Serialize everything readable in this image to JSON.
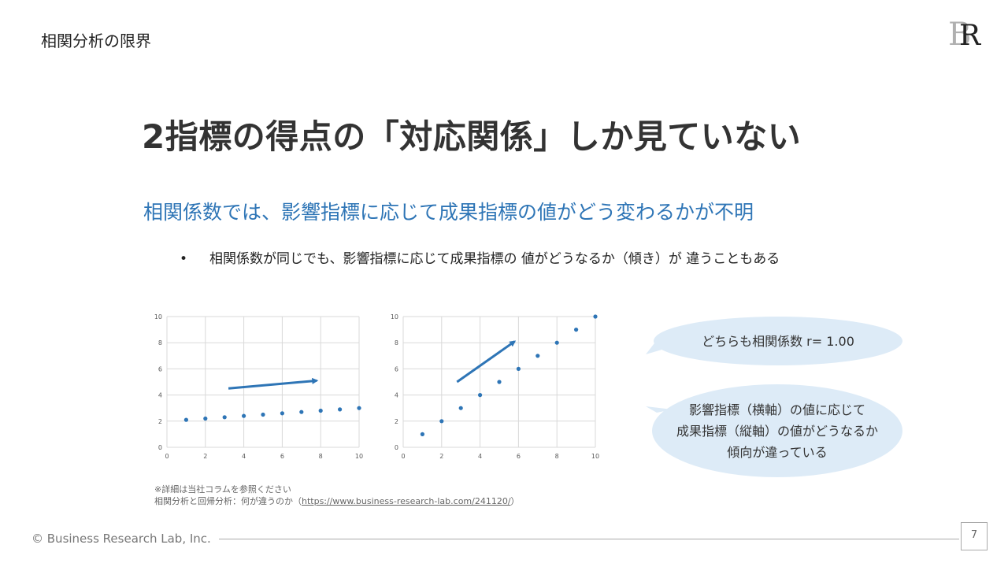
{
  "header": {
    "section_title": "相関分析の限界",
    "logo_letters": "BR"
  },
  "main": {
    "headline": "2指標の得点の「対応関係」しか見ていない",
    "subhead": "相関係数では、影響指標に応じて成果指標の値がどう変わるかが不明",
    "bullet_marker": "•",
    "bullet": "相関係数が同じでも、影響指標に応じて成果指標の 値がどうなるか（傾き）が 違うこともある"
  },
  "chart_data": [
    {
      "type": "scatter",
      "x": [
        1,
        2,
        3,
        4,
        5,
        6,
        7,
        8,
        9,
        10
      ],
      "y": [
        2.1,
        2.2,
        2.3,
        2.4,
        2.5,
        2.6,
        2.7,
        2.8,
        2.9,
        3.0
      ],
      "xlim": [
        0,
        10
      ],
      "ylim": [
        0,
        10
      ],
      "xticks": [
        "0",
        "2",
        "4",
        "6",
        "8",
        "10"
      ],
      "yticks": [
        "0",
        "2",
        "4",
        "6",
        "8",
        "10"
      ],
      "grid": true,
      "arrow": {
        "from": [
          3.2,
          4.5
        ],
        "to": [
          7.8,
          5.1
        ]
      },
      "color": "#2e75b6",
      "title": "",
      "xlabel": "",
      "ylabel": ""
    },
    {
      "type": "scatter",
      "x": [
        1,
        2,
        3,
        4,
        5,
        6,
        7,
        8,
        9,
        10
      ],
      "y": [
        1,
        2,
        3,
        4,
        5,
        6,
        7,
        8,
        9,
        10
      ],
      "xlim": [
        0,
        10
      ],
      "ylim": [
        0,
        10
      ],
      "xticks": [
        "0",
        "2",
        "4",
        "6",
        "8",
        "10"
      ],
      "yticks": [
        "0",
        "2",
        "4",
        "6",
        "8",
        "10"
      ],
      "grid": true,
      "arrow": {
        "from": [
          2.8,
          5.0
        ],
        "to": [
          5.8,
          8.1
        ]
      },
      "color": "#2e75b6",
      "title": "",
      "xlabel": "",
      "ylabel": ""
    }
  ],
  "callouts": {
    "bubble1": "どちらも相関係数 r= 1.00",
    "bubble2_lines": [
      "影響指標（横軸）の値に応じて",
      "成果指標（縦軸）の値がどうなるか",
      "傾向が違っている"
    ]
  },
  "note": {
    "line1": "※詳細は当社コラムを参照ください",
    "line2_prefix": "相関分析と回帰分析：何が違うのか（",
    "link": "https://www.business-research-lab.com/241120/",
    "line2_suffix": "）"
  },
  "footer": {
    "copyright": "© Business Research Lab, Inc.",
    "page_number": "7"
  }
}
